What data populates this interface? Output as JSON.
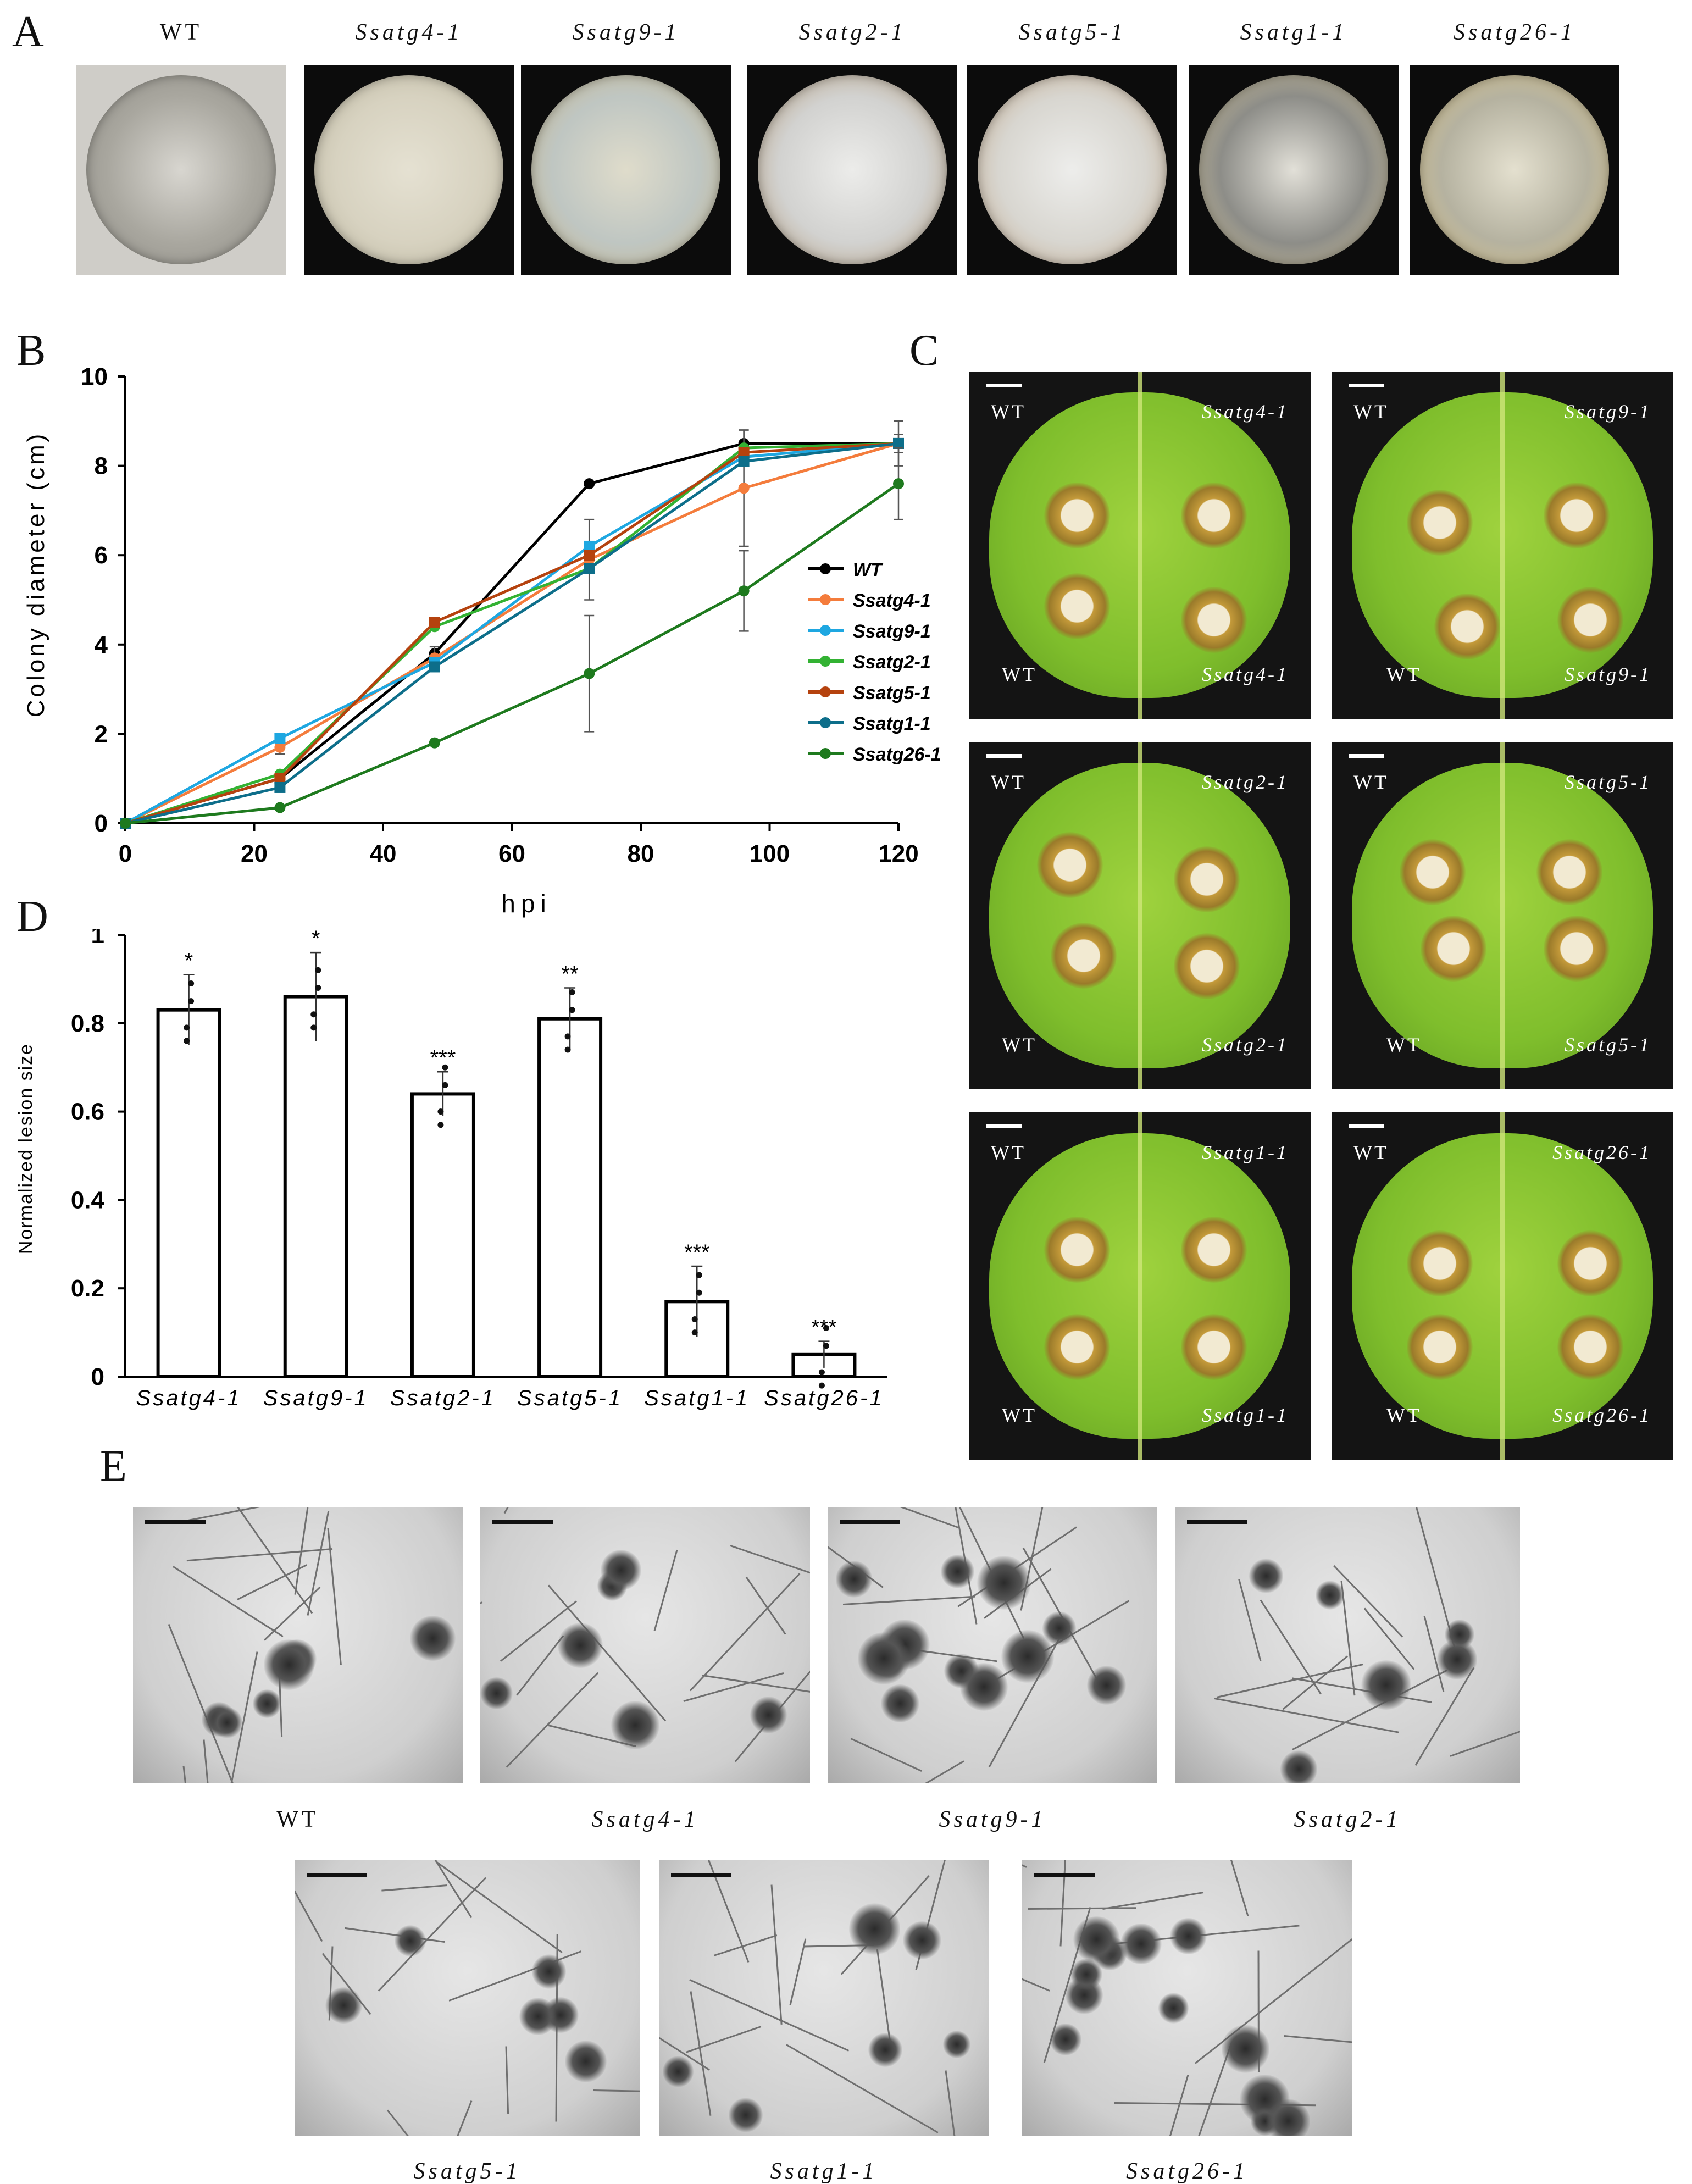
{
  "panels": {
    "a": "A",
    "b": "B",
    "c": "C",
    "d": "D",
    "e": "E"
  },
  "panel_a": {
    "strains": [
      "WT",
      "Ssatg4-1",
      "Ssatg9-1",
      "Ssatg2-1",
      "Ssatg5-1",
      "Ssatg1-1",
      "Ssatg26-1"
    ]
  },
  "chart_data": [
    {
      "type": "line",
      "xlabel": "hpi",
      "ylabel": "Colony diameter (cm)",
      "xlim": [
        0,
        120
      ],
      "ylim": [
        0,
        10
      ],
      "xticks": [
        0,
        20,
        40,
        60,
        80,
        100,
        120
      ],
      "yticks": [
        0,
        2,
        4,
        6,
        8,
        10
      ],
      "legend": "right",
      "x": [
        0,
        24,
        48,
        72,
        96,
        120
      ],
      "series": [
        {
          "name": "WT",
          "color": "#000000",
          "values": [
            0,
            1.0,
            3.8,
            7.6,
            8.5,
            8.5
          ]
        },
        {
          "name": "Ssatg4-1",
          "color": "#f47c3c",
          "values": [
            0,
            1.7,
            3.7,
            5.9,
            7.5,
            8.5
          ]
        },
        {
          "name": "Ssatg9-1",
          "color": "#1ea7e1",
          "values": [
            0,
            1.9,
            3.6,
            6.2,
            8.2,
            8.5
          ]
        },
        {
          "name": "Ssatg2-1",
          "color": "#33b233",
          "values": [
            0,
            1.1,
            4.4,
            5.7,
            8.4,
            8.5
          ]
        },
        {
          "name": "Ssatg5-1",
          "color": "#b5420e",
          "values": [
            0,
            1.0,
            4.5,
            6.0,
            8.3,
            8.5
          ]
        },
        {
          "name": "Ssatg1-1",
          "color": "#0d6e8a",
          "values": [
            0,
            0.8,
            3.5,
            5.7,
            8.1,
            8.5
          ]
        },
        {
          "name": "Ssatg26-1",
          "color": "#1e7a1e",
          "values": [
            0,
            0.35,
            1.8,
            3.35,
            5.2,
            7.6
          ]
        }
      ]
    },
    {
      "type": "bar",
      "ylabel": "Normalized lesion size",
      "ylim": [
        0,
        1
      ],
      "yticks": [
        "0",
        "0.2",
        "0.4",
        "0.6",
        "0.8",
        "1"
      ],
      "categories": [
        "Ssatg4-1",
        "Ssatg9-1",
        "Ssatg2-1",
        "Ssatg5-1",
        "Ssatg1-1",
        "Ssatg26-1"
      ],
      "values": [
        0.83,
        0.86,
        0.64,
        0.81,
        0.17,
        0.05
      ],
      "errors": [
        0.08,
        0.1,
        0.05,
        0.07,
        0.08,
        0.03
      ],
      "significance": [
        "*",
        "*",
        "***",
        "**",
        "***",
        "***"
      ]
    }
  ],
  "panel_c": {
    "leaves": [
      {
        "left": "WT",
        "right": "Ssatg4-1",
        "bottom_left": "WT",
        "bottom_right": "Ssatg4-1"
      },
      {
        "left": "WT",
        "right": "Ssatg9-1",
        "bottom_left": "WT",
        "bottom_right": "Ssatg9-1"
      },
      {
        "left": "WT",
        "right": "Ssatg2-1",
        "bottom_left": "WT",
        "bottom_right": "Ssatg2-1"
      },
      {
        "left": "WT",
        "right": "Ssatg5-1",
        "bottom_left": "WT",
        "bottom_right": "Ssatg5-1"
      },
      {
        "left": "WT",
        "right": "Ssatg1-1",
        "bottom_left": "WT",
        "bottom_right": "Ssatg1-1"
      },
      {
        "left": "WT",
        "right": "Ssatg26-1",
        "bottom_left": "WT",
        "bottom_right": "Ssatg26-1"
      }
    ]
  },
  "panel_e": {
    "strains": [
      "WT",
      "Ssatg4-1",
      "Ssatg9-1",
      "Ssatg2-1",
      "Ssatg5-1",
      "Ssatg1-1",
      "Ssatg26-1"
    ]
  }
}
